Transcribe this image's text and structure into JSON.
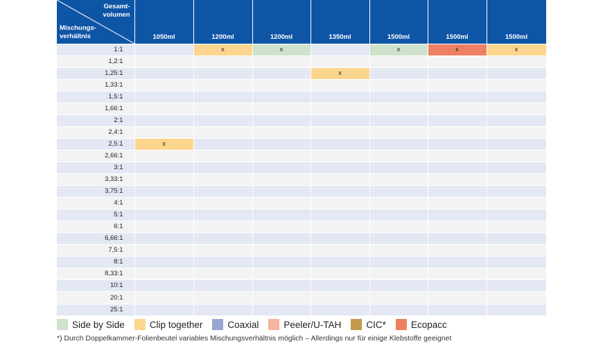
{
  "header": {
    "corner_top_line1": "Gesamt-",
    "corner_top_line2": "volumen",
    "corner_left_line1": "Mischungs-",
    "corner_left_line2": "verhältnis",
    "columns": [
      "1050ml",
      "1200ml",
      "1200ml",
      "1350ml",
      "1500ml",
      "1500ml",
      "1500ml"
    ]
  },
  "rows": [
    {
      "ratio": "1:1",
      "cells": [
        "",
        "x",
        "x",
        "",
        "x",
        "x",
        "x"
      ],
      "colors": [
        "",
        "clip",
        "side",
        "",
        "side",
        "eco",
        "clip"
      ]
    },
    {
      "ratio": "1,2:1",
      "cells": [
        "",
        "",
        "",
        "",
        "",
        "",
        ""
      ],
      "colors": [
        "",
        "",
        "",
        "",
        "",
        "",
        ""
      ]
    },
    {
      "ratio": "1,25:1",
      "cells": [
        "",
        "",
        "",
        "x",
        "",
        "",
        ""
      ],
      "colors": [
        "",
        "",
        "",
        "clip",
        "",
        "",
        ""
      ]
    },
    {
      "ratio": "1,33:1",
      "cells": [
        "",
        "",
        "",
        "",
        "",
        "",
        ""
      ],
      "colors": [
        "",
        "",
        "",
        "",
        "",
        "",
        ""
      ]
    },
    {
      "ratio": "1,5:1",
      "cells": [
        "",
        "",
        "",
        "",
        "",
        "",
        ""
      ],
      "colors": [
        "",
        "",
        "",
        "",
        "",
        "",
        ""
      ]
    },
    {
      "ratio": "1,66:1",
      "cells": [
        "",
        "",
        "",
        "",
        "",
        "",
        ""
      ],
      "colors": [
        "",
        "",
        "",
        "",
        "",
        "",
        ""
      ]
    },
    {
      "ratio": "2:1",
      "cells": [
        "",
        "",
        "",
        "",
        "",
        "",
        ""
      ],
      "colors": [
        "",
        "",
        "",
        "",
        "",
        "",
        ""
      ]
    },
    {
      "ratio": "2,4:1",
      "cells": [
        "",
        "",
        "",
        "",
        "",
        "",
        ""
      ],
      "colors": [
        "",
        "",
        "",
        "",
        "",
        "",
        ""
      ]
    },
    {
      "ratio": "2,5:1",
      "cells": [
        "x",
        "",
        "",
        "",
        "",
        "",
        ""
      ],
      "colors": [
        "clip",
        "",
        "",
        "",
        "",
        "",
        ""
      ]
    },
    {
      "ratio": "2,66:1",
      "cells": [
        "",
        "",
        "",
        "",
        "",
        "",
        ""
      ],
      "colors": [
        "",
        "",
        "",
        "",
        "",
        "",
        ""
      ]
    },
    {
      "ratio": "3:1",
      "cells": [
        "",
        "",
        "",
        "",
        "",
        "",
        ""
      ],
      "colors": [
        "",
        "",
        "",
        "",
        "",
        "",
        ""
      ]
    },
    {
      "ratio": "3,33:1",
      "cells": [
        "",
        "",
        "",
        "",
        "",
        "",
        ""
      ],
      "colors": [
        "",
        "",
        "",
        "",
        "",
        "",
        ""
      ]
    },
    {
      "ratio": "3,75:1",
      "cells": [
        "",
        "",
        "",
        "",
        "",
        "",
        ""
      ],
      "colors": [
        "",
        "",
        "",
        "",
        "",
        "",
        ""
      ]
    },
    {
      "ratio": "4:1",
      "cells": [
        "",
        "",
        "",
        "",
        "",
        "",
        ""
      ],
      "colors": [
        "",
        "",
        "",
        "",
        "",
        "",
        ""
      ]
    },
    {
      "ratio": "5:1",
      "cells": [
        "",
        "",
        "",
        "",
        "",
        "",
        ""
      ],
      "colors": [
        "",
        "",
        "",
        "",
        "",
        "",
        ""
      ]
    },
    {
      "ratio": "6:1",
      "cells": [
        "",
        "",
        "",
        "",
        "",
        "",
        ""
      ],
      "colors": [
        "",
        "",
        "",
        "",
        "",
        "",
        ""
      ]
    },
    {
      "ratio": "6,66:1",
      "cells": [
        "",
        "",
        "",
        "",
        "",
        "",
        ""
      ],
      "colors": [
        "",
        "",
        "",
        "",
        "",
        "",
        ""
      ]
    },
    {
      "ratio": "7,5:1",
      "cells": [
        "",
        "",
        "",
        "",
        "",
        "",
        ""
      ],
      "colors": [
        "",
        "",
        "",
        "",
        "",
        "",
        ""
      ]
    },
    {
      "ratio": "8:1",
      "cells": [
        "",
        "",
        "",
        "",
        "",
        "",
        ""
      ],
      "colors": [
        "",
        "",
        "",
        "",
        "",
        "",
        ""
      ]
    },
    {
      "ratio": "8,33:1",
      "cells": [
        "",
        "",
        "",
        "",
        "",
        "",
        ""
      ],
      "colors": [
        "",
        "",
        "",
        "",
        "",
        "",
        ""
      ]
    },
    {
      "ratio": "10:1",
      "cells": [
        "",
        "",
        "",
        "",
        "",
        "",
        ""
      ],
      "colors": [
        "",
        "",
        "",
        "",
        "",
        "",
        ""
      ]
    },
    {
      "ratio": "20:1",
      "cells": [
        "",
        "",
        "",
        "",
        "",
        "",
        ""
      ],
      "colors": [
        "",
        "",
        "",
        "",
        "",
        "",
        ""
      ]
    },
    {
      "ratio": "25:1",
      "cells": [
        "",
        "",
        "",
        "",
        "",
        "",
        ""
      ],
      "colors": [
        "",
        "",
        "",
        "",
        "",
        "",
        ""
      ]
    }
  ],
  "legend": [
    {
      "key": "side",
      "label": "Side by Side",
      "color": "#cfe2cc"
    },
    {
      "key": "clip",
      "label": "Clip together",
      "color": "#fcd68e"
    },
    {
      "key": "coaxial",
      "label": "Coaxial",
      "color": "#9aa5d4"
    },
    {
      "key": "peeler",
      "label": "Peeler/U-TAH",
      "color": "#f5b49c"
    },
    {
      "key": "cic",
      "label": "CIC*",
      "color": "#c39a4c"
    },
    {
      "key": "eco",
      "label": "Ecopacc",
      "color": "#ee8062"
    }
  ],
  "footnote": "*) Durch Doppelkammer-Folienbeutel variables Mischungsverhältnis möglich – Allerdings nur für einige Klebstoffe geeignet",
  "colors": {
    "header_bg": "#0f55a6",
    "row_odd": "#e4e7f4",
    "row_even": "#f3f3f3"
  }
}
